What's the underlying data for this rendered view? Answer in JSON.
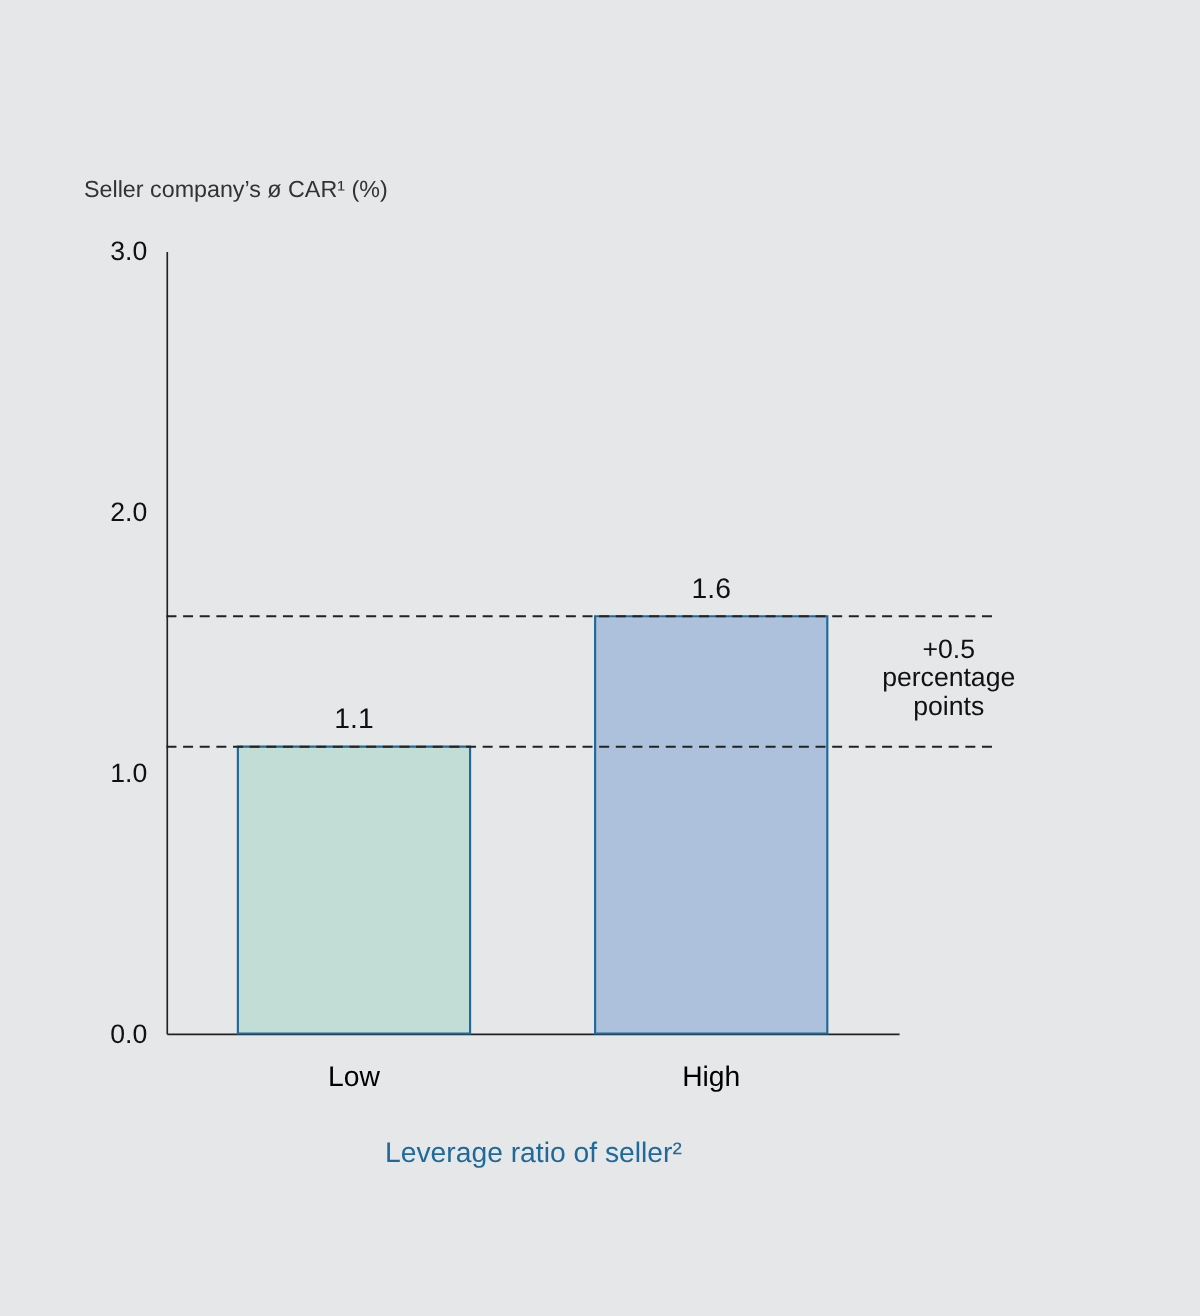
{
  "chart_data": {
    "type": "bar",
    "ylabel": "Seller company’s ø CAR¹ (%)",
    "xlabel": "Leverage ratio of seller²",
    "categories": [
      "Low",
      "High"
    ],
    "values": [
      1.1,
      1.6
    ],
    "colors": [
      "#c2ddd6",
      "#adc0dc"
    ],
    "ylim": [
      0,
      3
    ],
    "yticks": [
      {
        "value": 0,
        "label": "0.0"
      },
      {
        "value": 1,
        "label": "1.0"
      },
      {
        "value": 2,
        "label": "2.0"
      },
      {
        "value": 3,
        "label": "3.0"
      }
    ],
    "data_labels": true,
    "grid": false,
    "ref_lines": [
      {
        "axis": "y",
        "value": 1.1,
        "line_style": "dashed"
      },
      {
        "axis": "y",
        "value": 1.6,
        "line_style": "dashed"
      }
    ],
    "annotations": [
      "+0.5\npercentage\npoints"
    ]
  }
}
